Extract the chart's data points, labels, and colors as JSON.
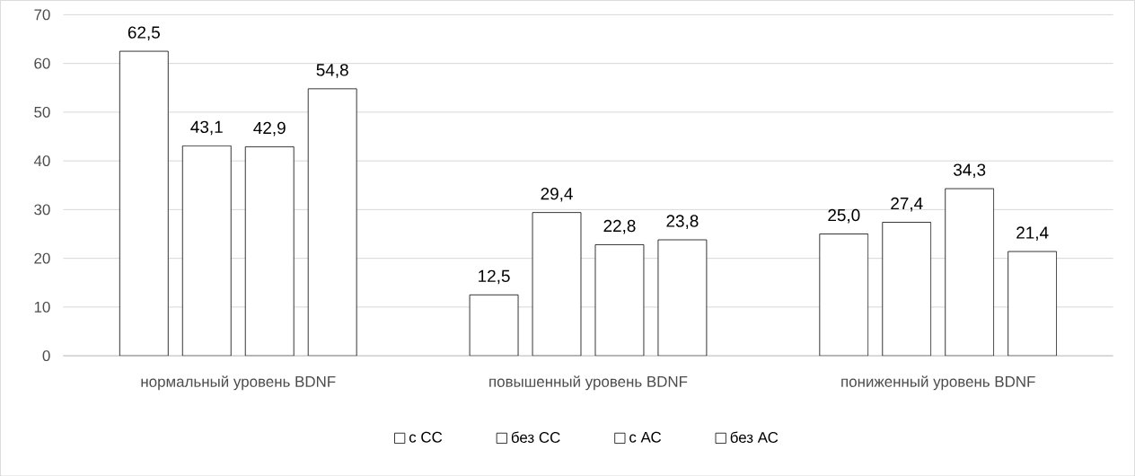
{
  "chart_data": {
    "type": "bar",
    "categories": [
      "нормальный уровень BDNF",
      "повышенный уровень BDNF",
      "пониженный уровень BDNF"
    ],
    "series": [
      {
        "name": "с СС",
        "color": "#000000",
        "values": [
          62.5,
          12.5,
          25.0
        ],
        "value_labels": [
          "62,5",
          "12,5",
          "25,0"
        ]
      },
      {
        "name": "без СС",
        "color": "#000000",
        "values": [
          43.1,
          29.4,
          27.4
        ],
        "value_labels": [
          "43,1",
          "29,4",
          "27,4"
        ]
      },
      {
        "name": "с АС",
        "color": "#000000",
        "values": [
          42.9,
          22.8,
          34.3
        ],
        "value_labels": [
          "42,9",
          "22,8",
          "34,3"
        ]
      },
      {
        "name": "без АС",
        "color": "#000000",
        "values": [
          54.8,
          23.8,
          21.4
        ],
        "value_labels": [
          "54,8",
          "23,8",
          "21,4"
        ]
      }
    ],
    "ylim": [
      0,
      70
    ],
    "yticks": [
      0,
      10,
      20,
      30,
      40,
      50,
      60,
      70
    ],
    "grid": "y",
    "legend": "bottom"
  }
}
